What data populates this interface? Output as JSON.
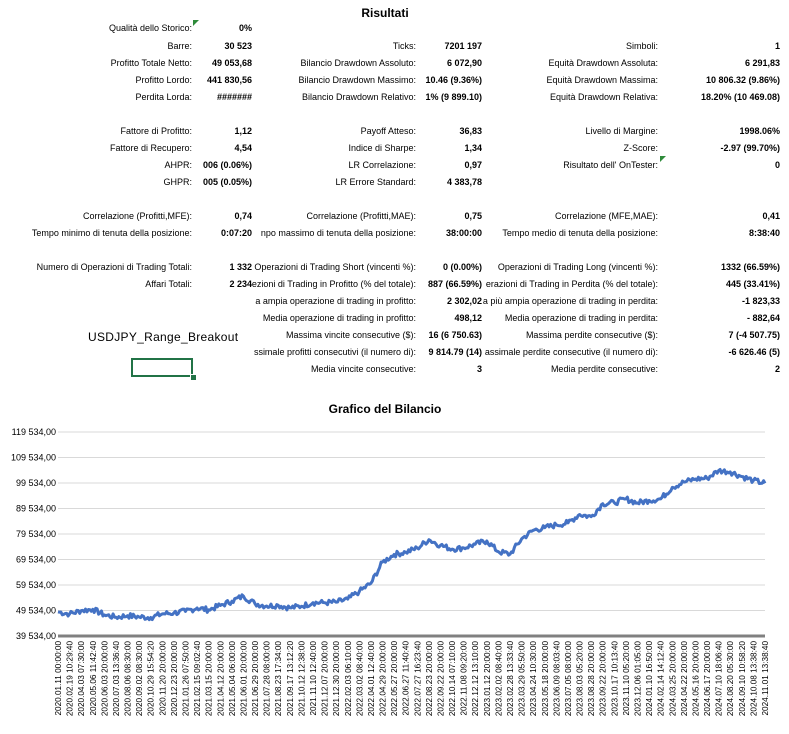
{
  "report": {
    "title": "Risultati",
    "sheet_name": "USDJPY_Range_Breakout",
    "rows": [
      [
        {
          "label": "Qualità dello Storico:",
          "value": "0%"
        },
        null,
        null
      ],
      [
        {
          "label": "Barre:",
          "value": "30 523"
        },
        {
          "label": "Ticks:",
          "value": "7201 197"
        },
        {
          "label": "Simboli:",
          "value": "1"
        }
      ],
      [
        {
          "label": "Profitto Totale Netto:",
          "value": "49 053,68"
        },
        {
          "label": "Bilancio Drawdown Assoluto:",
          "value": "6 072,90"
        },
        {
          "label": "Equità Drawdown Assoluta:",
          "value": "6 291,83"
        }
      ],
      [
        {
          "label": "Profitto Lordo:",
          "value": "441 830,56"
        },
        {
          "label": "Bilancio Drawdown Massimo:",
          "value": "10.46 (9.36%)"
        },
        {
          "label": "Equità Drawdown Massima:",
          "value": "10 806.32 (9.86%)"
        }
      ],
      [
        {
          "label": "Perdita Lorda:",
          "value": "#######"
        },
        {
          "label": "Bilancio Drawdown Relativo:",
          "value": "1% (9 899.10)"
        },
        {
          "label": "Equità Drawdown Relativa:",
          "value": "18.20% (10 469.08)"
        }
      ],
      [
        {
          "label": "Fattore di Profitto:",
          "value": "1,12"
        },
        {
          "label": "Payoff Atteso:",
          "value": "36,83"
        },
        {
          "label": "Livello di Margine:",
          "value": "1998.06%"
        }
      ],
      [
        {
          "label": "Fattore di Recupero:",
          "value": "4,54"
        },
        {
          "label": "Indice di Sharpe:",
          "value": "1,34"
        },
        {
          "label": "Z-Score:",
          "value": "-2.97 (99.70%)"
        }
      ],
      [
        {
          "label": "AHPR:",
          "value": "006 (0.06%)"
        },
        {
          "label": "LR Correlazione:",
          "value": "0,97"
        },
        {
          "label": "Risultato dell' OnTester:",
          "value": "0"
        }
      ],
      [
        {
          "label": "GHPR:",
          "value": "005 (0.05%)"
        },
        {
          "label": "LR Errore Standard:",
          "value": "4 383,78"
        },
        null
      ],
      [
        {
          "label": "Correlazione (Profitti,MFE):",
          "value": "0,74"
        },
        {
          "label": "Correlazione (Profitti,MAE):",
          "value": "0,75"
        },
        {
          "label": "Correlazione (MFE,MAE):",
          "value": "0,41"
        }
      ],
      [
        {
          "label": "Tempo minimo di tenuta della posizione:",
          "value": "0:07:20"
        },
        {
          "label": "npo massimo di tenuta della posizione:",
          "value": "38:00:00"
        },
        {
          "label": "Tempo medio di tenuta della posizione:",
          "value": "8:38:40"
        }
      ],
      [
        {
          "label": "Numero di Operazioni di Trading Totali:",
          "value": "1 332"
        },
        {
          "label": "Operazioni di Trading Short (vincenti %):",
          "value": "0 (0.00%)"
        },
        {
          "label": "Operazioni di Trading Long (vincenti %):",
          "value": "1332 (66.59%)"
        }
      ],
      [
        {
          "label": "Affari Totali:",
          "value": "2 234"
        },
        {
          "label": "ezioni di Trading in Profitto (% del totale):",
          "value": "887 (66.59%)"
        },
        {
          "label": "erazioni di Trading in Perdita (% del totale):",
          "value": "445 (33.41%)"
        }
      ],
      [
        null,
        {
          "label": "a ampia operazione di trading in profitto:",
          "value": "2 302,02"
        },
        {
          "label": "a più ampia operazione di trading in perdita:",
          "value": "-1 823,33"
        }
      ],
      [
        null,
        {
          "label": "Media operazione di trading in profitto:",
          "value": "498,12"
        },
        {
          "label": "Media operazione di trading in perdita:",
          "value": "- 882,64"
        }
      ],
      [
        null,
        {
          "label": "Massima vincite consecutive ($):",
          "value": "16 (6 750.63)"
        },
        {
          "label": "Massima perdite consecutive ($):",
          "value": "7 (-4 507.75)"
        }
      ],
      [
        null,
        {
          "label": "ssimale profitti consecutivi (il numero di):",
          "value": "9 814.79 (14)"
        },
        {
          "label": "assimale perdite consecutive (il numero di):",
          "value": "-6 626.46 (5)"
        }
      ],
      [
        null,
        {
          "label": "Media vincite consecutive:",
          "value": "3"
        },
        {
          "label": "Media perdite consecutive:",
          "value": "2"
        }
      ]
    ]
  },
  "chart_data": {
    "type": "line",
    "title": "Grafico del Bilancio",
    "ylim": [
      39534,
      119534
    ],
    "y_ticks": [
      "119 534,00",
      "109 534,00",
      "99 534,00",
      "89 534,00",
      "79 534,00",
      "69 534,00",
      "59 534,00",
      "49 534,00",
      "39 534,00"
    ],
    "y_tick_values": [
      119534,
      109534,
      99534,
      89534,
      79534,
      69534,
      59534,
      49534,
      39534
    ],
    "grid": true,
    "legend": "none",
    "line_color": "#4472c4",
    "x": [
      "2020.01.11 00:00:00",
      "2020.02.19 10:29:40",
      "2020.04.03 07:30:00",
      "2020.05.06 11:42:40",
      "2020.06.03 20:00:00",
      "2020.07.03 13:36:40",
      "2020.08.06 08:30:00",
      "2020.09.02 08:30:00",
      "2020.10.29 15:54:20",
      "2020.11.20 20:00:00",
      "2020.12.23 20:00:00",
      "2021.01.26 07:50:00",
      "2021.02.15 09:02:40",
      "2021.03.15 20:00:00",
      "2021.04.12 20:00:00",
      "2021.05.04 06:00:00",
      "2021.06.01 20:00:00",
      "2021.06.29 20:00:00",
      "2021.07.28 08:00:00",
      "2021.08.23 17:34:00",
      "2021.09.17 13:12:20",
      "2021.10.12 12:38:00",
      "2021.11.10 12:40:00",
      "2021.12.07 20:00:00",
      "2021.12.30 20:00:00",
      "2022.02.03 06:10:00",
      "2022.03.02 08:40:00",
      "2022.04.01 12:40:00",
      "2022.04.29 20:00:00",
      "2022.05.27 20:00:00",
      "2022.06.27 11:40:40",
      "2022.07.27 16:23:40",
      "2022.08.23 20:00:00",
      "2022.09.22 20:00:00",
      "2022.10.14 07:10:00",
      "2022.11.08 09:20:00",
      "2022.12.12 13:10:00",
      "2023.01.12 20:00:00",
      "2023.02.02 08:40:00",
      "2023.02.28 13:33:40",
      "2023.03.29 05:50:00",
      "2023.04.24 10:30:00",
      "2023.05.18 20:00:00",
      "2023.06.09 08:03:40",
      "2023.07.05 08:00:00",
      "2023.08.03 05:20:00",
      "2023.08.28 20:00:00",
      "2023.09.22 20:00:00",
      "2023.10.17 10:13:40",
      "2023.11.10 05:20:00",
      "2023.12.06 01:05:00",
      "2024.01.10 16:50:00",
      "2024.02.14 14:12:40",
      "2024.03.25 20:00:00",
      "2024.04.22 20:00:00",
      "2024.05.16 20:00:00",
      "2024.06.17 20:00:00",
      "2024.07.10 18:06:40",
      "2024.08.20 05:30:00",
      "2024.09.10 10:58:20",
      "2024.10.08 13:38:40",
      "2024.11.01 13:38:40"
    ],
    "values": [
      49000,
      48200,
      49500,
      50000,
      47800,
      46900,
      47500,
      47000,
      46800,
      48200,
      48600,
      49200,
      50500,
      49800,
      51500,
      53200,
      55200,
      52200,
      51300,
      51600,
      50600,
      51200,
      52600,
      52600,
      52800,
      54000,
      57000,
      60200,
      68500,
      71500,
      72400,
      74000,
      77300,
      75100,
      73600,
      74100,
      75500,
      76800,
      72600,
      71600,
      77600,
      81000,
      82000,
      83100,
      83900,
      87200,
      86300,
      91400,
      91800,
      93300,
      91700,
      92700,
      93300,
      97800,
      99900,
      101100,
      101400,
      104400,
      103900,
      102100,
      100500,
      99400
    ]
  }
}
